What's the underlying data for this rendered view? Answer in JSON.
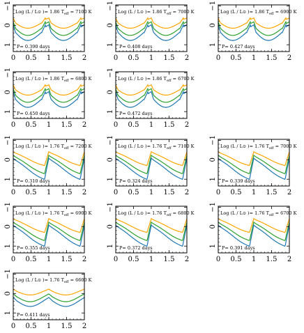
{
  "figure": {
    "panel_label_prefix": "Log (L / L",
    "panel_label_sun": "⊙",
    "panel_label_mid": ")=",
    "panel_label_teff": "T",
    "panel_label_eff": "eff",
    "panel_label_eq": "=",
    "period_prefix": "P=",
    "period_unit": "days"
  },
  "chart_data": [
    {
      "type": "line",
      "logL": "1.86",
      "teff": "7100 K",
      "period": "0.390",
      "x": [
        0,
        0.5,
        1,
        1.5,
        2
      ],
      "xticks": [
        "0",
        "0.5",
        "1",
        "1.5",
        "2"
      ],
      "ylim": [
        1.35,
        -1.05
      ],
      "yticks": [
        "−1",
        "0",
        "1"
      ],
      "variant": "A",
      "series_colors": [
        "#ffa500",
        "#2ca02c",
        "#1f77b4"
      ]
    },
    {
      "type": "line",
      "logL": "1.86",
      "teff": "7000 K",
      "period": "0.408",
      "x": [
        0,
        0.5,
        1,
        1.5,
        2
      ],
      "xticks": [
        "0",
        "0.5",
        "1",
        "1.5",
        "2"
      ],
      "ylim": [
        1.35,
        -1.05
      ],
      "yticks": [
        "−1",
        "0",
        "1"
      ],
      "variant": "A",
      "series_colors": [
        "#ffa500",
        "#2ca02c",
        "#1f77b4"
      ]
    },
    {
      "type": "line",
      "logL": "1.86",
      "teff": "6900 K",
      "period": "0.427",
      "x": [
        0,
        0.5,
        1,
        1.5,
        2
      ],
      "xticks": [
        "0",
        "0.5",
        "1",
        "1.5",
        "2"
      ],
      "ylim": [
        1.35,
        -1.05
      ],
      "yticks": [
        "−1",
        "0",
        "1"
      ],
      "variant": "A",
      "series_colors": [
        "#ffa500",
        "#2ca02c",
        "#1f77b4"
      ]
    },
    {
      "type": "line",
      "logL": "1.86",
      "teff": "6800 K",
      "period": "0.450",
      "x": [
        0,
        0.5,
        1,
        1.5,
        2
      ],
      "xticks": [
        "0",
        "0.5",
        "1",
        "1.5",
        "2"
      ],
      "ylim": [
        1.35,
        -1.05
      ],
      "yticks": [
        "−1",
        "0",
        "1"
      ],
      "variant": "A",
      "series_colors": [
        "#ffa500",
        "#2ca02c",
        "#1f77b4"
      ]
    },
    {
      "type": "line",
      "logL": "1.86",
      "teff": "6700 K",
      "period": "0.472",
      "x": [
        0,
        0.5,
        1,
        1.5,
        2
      ],
      "xticks": [
        "0",
        "0.5",
        "1",
        "1.5",
        "2"
      ],
      "ylim": [
        1.35,
        -1.05
      ],
      "yticks": [
        "−1",
        "0",
        "1"
      ],
      "variant": "A",
      "series_colors": [
        "#ffa500",
        "#2ca02c",
        "#1f77b4"
      ]
    },
    {
      "type": "line",
      "logL": "1.76",
      "teff": "7200 K",
      "period": "0.310",
      "x": [
        0,
        0.5,
        1,
        1.5,
        2
      ],
      "xticks": [
        "0",
        "0.5",
        "1",
        "1.5",
        "2"
      ],
      "ylim": [
        1.35,
        -1.05
      ],
      "yticks": [
        "−1",
        "0",
        "1"
      ],
      "variant": "B",
      "series_colors": [
        "#ffa500",
        "#2ca02c",
        "#1f77b4"
      ]
    },
    {
      "type": "line",
      "logL": "1.76",
      "teff": "7100 K",
      "period": "0.324",
      "x": [
        0,
        0.5,
        1,
        1.5,
        2
      ],
      "xticks": [
        "0",
        "0.5",
        "1",
        "1.5",
        "2"
      ],
      "ylim": [
        1.35,
        -1.05
      ],
      "yticks": [
        "−1",
        "0",
        "1"
      ],
      "variant": "B",
      "series_colors": [
        "#ffa500",
        "#2ca02c",
        "#1f77b4"
      ]
    },
    {
      "type": "line",
      "logL": "1.76",
      "teff": "7000 K",
      "period": "0.339",
      "x": [
        0,
        0.5,
        1,
        1.5,
        2
      ],
      "xticks": [
        "0",
        "0.5",
        "1",
        "1.5",
        "2"
      ],
      "ylim": [
        1.35,
        -1.05
      ],
      "yticks": [
        "−1",
        "0",
        "1"
      ],
      "variant": "B",
      "series_colors": [
        "#ffa500",
        "#2ca02c",
        "#1f77b4"
      ]
    },
    {
      "type": "line",
      "logL": "1.76",
      "teff": "6900 K",
      "period": "0.355",
      "x": [
        0,
        0.5,
        1,
        1.5,
        2
      ],
      "xticks": [
        "0",
        "0.5",
        "1",
        "1.5",
        "2"
      ],
      "ylim": [
        1.35,
        -1.05
      ],
      "yticks": [
        "−1",
        "0",
        "1"
      ],
      "variant": "B",
      "series_colors": [
        "#ffa500",
        "#2ca02c",
        "#1f77b4"
      ]
    },
    {
      "type": "line",
      "logL": "1.76",
      "teff": "6800 K",
      "period": "0.372",
      "x": [
        0,
        0.5,
        1,
        1.5,
        2
      ],
      "xticks": [
        "0",
        "0.5",
        "1",
        "1.5",
        "2"
      ],
      "ylim": [
        1.35,
        -1.05
      ],
      "yticks": [
        "−1",
        "0",
        "1"
      ],
      "variant": "B",
      "series_colors": [
        "#ffa500",
        "#2ca02c",
        "#1f77b4"
      ]
    },
    {
      "type": "line",
      "logL": "1.76",
      "teff": "6700 K",
      "period": "0.391",
      "x": [
        0,
        0.5,
        1,
        1.5,
        2
      ],
      "xticks": [
        "0",
        "0.5",
        "1",
        "1.5",
        "2"
      ],
      "ylim": [
        1.35,
        -1.05
      ],
      "yticks": [
        "−1",
        "0",
        "1"
      ],
      "variant": "B",
      "series_colors": [
        "#ffa500",
        "#2ca02c",
        "#1f77b4"
      ]
    },
    {
      "type": "line",
      "logL": "1.76",
      "teff": "6600 K",
      "period": "0.411",
      "x": [
        0,
        0.5,
        1,
        1.5,
        2
      ],
      "xticks": [
        "0",
        "0.5",
        "1",
        "1.5",
        "2"
      ],
      "ylim": [
        1.35,
        -1.05
      ],
      "yticks": [
        "−1",
        "0",
        "1"
      ],
      "variant": "C",
      "series_colors": [
        "#ffa500",
        "#2ca02c",
        "#1f77b4"
      ]
    }
  ]
}
